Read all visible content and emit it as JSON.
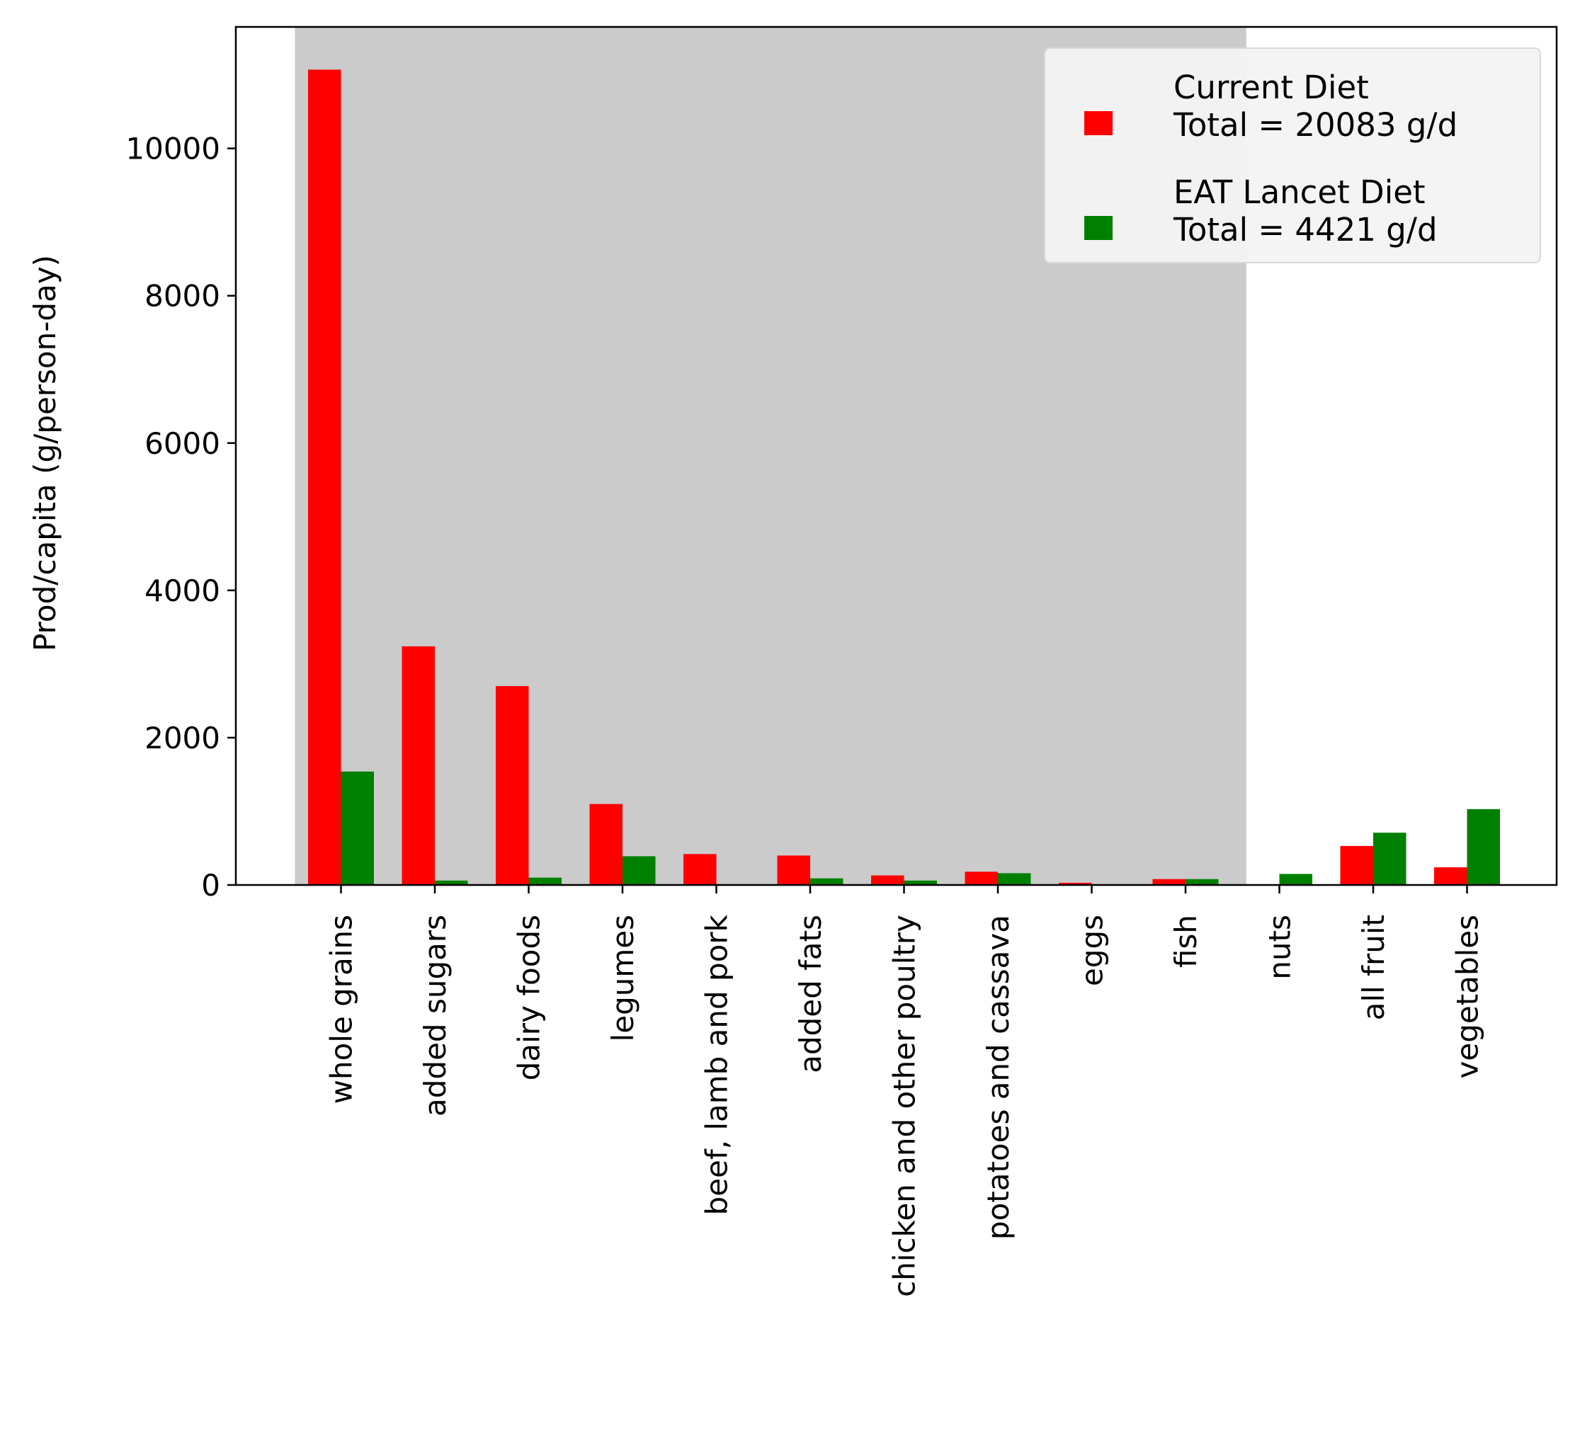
{
  "chart_data": {
    "type": "bar",
    "title": "",
    "xlabel": "",
    "ylabel": "Prod/capita (g/person-day)",
    "ylim": [
      0,
      11650
    ],
    "yticks": [
      0,
      2000,
      4000,
      6000,
      8000,
      10000
    ],
    "grid": false,
    "categories": [
      "whole grains",
      "added sugars",
      "dairy foods",
      "legumes",
      "beef, lamb and pork",
      "added fats",
      "chicken and other poultry",
      "potatoes and cassava",
      "eggs",
      "fish",
      "nuts",
      "all fruit",
      "vegetables"
    ],
    "shaded_region": {
      "from_category": "whole grains",
      "to_category": "fish",
      "color": "#cbcbcb"
    },
    "series": [
      {
        "name": "Current Diet\nTotal = 20083 g/d",
        "color": "#ff0000",
        "values": [
          11070,
          3240,
          2700,
          1100,
          420,
          400,
          130,
          180,
          30,
          80,
          5,
          530,
          240
        ]
      },
      {
        "name": "EAT Lancet Diet\nTotal = 4421 g/d",
        "color": "#008000",
        "values": [
          1540,
          60,
          100,
          390,
          10,
          90,
          60,
          160,
          10,
          80,
          150,
          710,
          1030
        ]
      }
    ],
    "legend": {
      "position": "top-right"
    }
  }
}
